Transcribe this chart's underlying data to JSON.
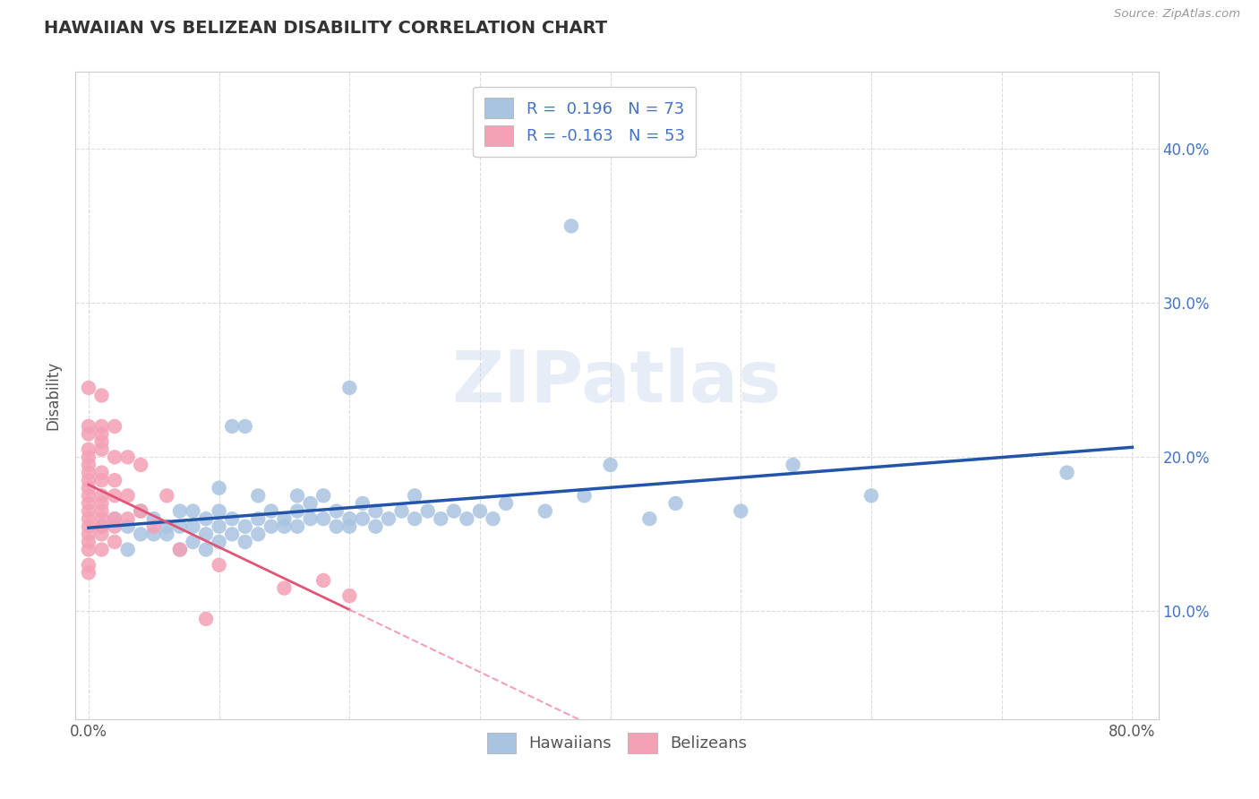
{
  "title": "HAWAIIAN VS BELIZEAN DISABILITY CORRELATION CHART",
  "source": "Source: ZipAtlas.com",
  "ylabel": "Disability",
  "xlim": [
    -0.01,
    0.82
  ],
  "ylim": [
    0.03,
    0.45
  ],
  "x_tick_positions": [
    0.0,
    0.1,
    0.2,
    0.3,
    0.4,
    0.5,
    0.6,
    0.7,
    0.8
  ],
  "x_tick_labels": [
    "0.0%",
    "",
    "",
    "",
    "",
    "",
    "",
    "",
    "80.0%"
  ],
  "y_tick_positions": [
    0.1,
    0.2,
    0.3,
    0.4
  ],
  "y_tick_labels": [
    "10.0%",
    "20.0%",
    "30.0%",
    "40.0%"
  ],
  "hawaiian_color": "#a8c4e0",
  "belizean_color": "#f4a0b5",
  "hawaiian_line_color": "#2255aa",
  "belizean_line_solid_color": "#e05575",
  "belizean_line_dash_color": "#f4a0b5",
  "legend_R_hawaiian": "0.196",
  "legend_N_hawaiian": "73",
  "legend_R_belizean": "-0.163",
  "legend_N_belizean": "53",
  "watermark": "ZIPatlas",
  "hawaiian_points": [
    [
      0.01,
      0.155
    ],
    [
      0.02,
      0.16
    ],
    [
      0.03,
      0.14
    ],
    [
      0.03,
      0.155
    ],
    [
      0.04,
      0.15
    ],
    [
      0.04,
      0.165
    ],
    [
      0.05,
      0.15
    ],
    [
      0.05,
      0.16
    ],
    [
      0.06,
      0.15
    ],
    [
      0.06,
      0.155
    ],
    [
      0.07,
      0.14
    ],
    [
      0.07,
      0.155
    ],
    [
      0.07,
      0.165
    ],
    [
      0.08,
      0.145
    ],
    [
      0.08,
      0.155
    ],
    [
      0.08,
      0.165
    ],
    [
      0.09,
      0.14
    ],
    [
      0.09,
      0.15
    ],
    [
      0.09,
      0.16
    ],
    [
      0.1,
      0.145
    ],
    [
      0.1,
      0.155
    ],
    [
      0.1,
      0.165
    ],
    [
      0.1,
      0.18
    ],
    [
      0.11,
      0.15
    ],
    [
      0.11,
      0.16
    ],
    [
      0.11,
      0.22
    ],
    [
      0.12,
      0.145
    ],
    [
      0.12,
      0.155
    ],
    [
      0.12,
      0.22
    ],
    [
      0.13,
      0.15
    ],
    [
      0.13,
      0.16
    ],
    [
      0.13,
      0.175
    ],
    [
      0.14,
      0.155
    ],
    [
      0.14,
      0.165
    ],
    [
      0.15,
      0.155
    ],
    [
      0.15,
      0.16
    ],
    [
      0.16,
      0.155
    ],
    [
      0.16,
      0.165
    ],
    [
      0.16,
      0.175
    ],
    [
      0.17,
      0.16
    ],
    [
      0.17,
      0.17
    ],
    [
      0.18,
      0.16
    ],
    [
      0.18,
      0.175
    ],
    [
      0.19,
      0.155
    ],
    [
      0.19,
      0.165
    ],
    [
      0.2,
      0.155
    ],
    [
      0.2,
      0.16
    ],
    [
      0.2,
      0.245
    ],
    [
      0.21,
      0.16
    ],
    [
      0.21,
      0.17
    ],
    [
      0.22,
      0.155
    ],
    [
      0.22,
      0.165
    ],
    [
      0.23,
      0.16
    ],
    [
      0.24,
      0.165
    ],
    [
      0.25,
      0.16
    ],
    [
      0.25,
      0.175
    ],
    [
      0.26,
      0.165
    ],
    [
      0.27,
      0.16
    ],
    [
      0.28,
      0.165
    ],
    [
      0.29,
      0.16
    ],
    [
      0.3,
      0.165
    ],
    [
      0.31,
      0.16
    ],
    [
      0.32,
      0.17
    ],
    [
      0.35,
      0.165
    ],
    [
      0.37,
      0.35
    ],
    [
      0.38,
      0.175
    ],
    [
      0.4,
      0.195
    ],
    [
      0.43,
      0.16
    ],
    [
      0.45,
      0.17
    ],
    [
      0.5,
      0.165
    ],
    [
      0.54,
      0.195
    ],
    [
      0.6,
      0.175
    ],
    [
      0.75,
      0.19
    ]
  ],
  "belizean_points": [
    [
      0.0,
      0.245
    ],
    [
      0.0,
      0.22
    ],
    [
      0.0,
      0.215
    ],
    [
      0.0,
      0.205
    ],
    [
      0.0,
      0.2
    ],
    [
      0.0,
      0.195
    ],
    [
      0.0,
      0.19
    ],
    [
      0.0,
      0.185
    ],
    [
      0.0,
      0.18
    ],
    [
      0.0,
      0.175
    ],
    [
      0.0,
      0.17
    ],
    [
      0.0,
      0.165
    ],
    [
      0.0,
      0.16
    ],
    [
      0.0,
      0.155
    ],
    [
      0.0,
      0.15
    ],
    [
      0.0,
      0.145
    ],
    [
      0.0,
      0.14
    ],
    [
      0.0,
      0.13
    ],
    [
      0.0,
      0.125
    ],
    [
      0.01,
      0.24
    ],
    [
      0.01,
      0.22
    ],
    [
      0.01,
      0.215
    ],
    [
      0.01,
      0.21
    ],
    [
      0.01,
      0.205
    ],
    [
      0.01,
      0.19
    ],
    [
      0.01,
      0.185
    ],
    [
      0.01,
      0.175
    ],
    [
      0.01,
      0.17
    ],
    [
      0.01,
      0.165
    ],
    [
      0.01,
      0.16
    ],
    [
      0.01,
      0.155
    ],
    [
      0.01,
      0.15
    ],
    [
      0.01,
      0.14
    ],
    [
      0.02,
      0.22
    ],
    [
      0.02,
      0.2
    ],
    [
      0.02,
      0.185
    ],
    [
      0.02,
      0.175
    ],
    [
      0.02,
      0.16
    ],
    [
      0.02,
      0.155
    ],
    [
      0.02,
      0.145
    ],
    [
      0.03,
      0.2
    ],
    [
      0.03,
      0.175
    ],
    [
      0.03,
      0.16
    ],
    [
      0.04,
      0.195
    ],
    [
      0.04,
      0.165
    ],
    [
      0.05,
      0.155
    ],
    [
      0.06,
      0.175
    ],
    [
      0.07,
      0.14
    ],
    [
      0.09,
      0.095
    ],
    [
      0.1,
      0.13
    ],
    [
      0.15,
      0.115
    ],
    [
      0.18,
      0.12
    ],
    [
      0.2,
      0.11
    ]
  ]
}
